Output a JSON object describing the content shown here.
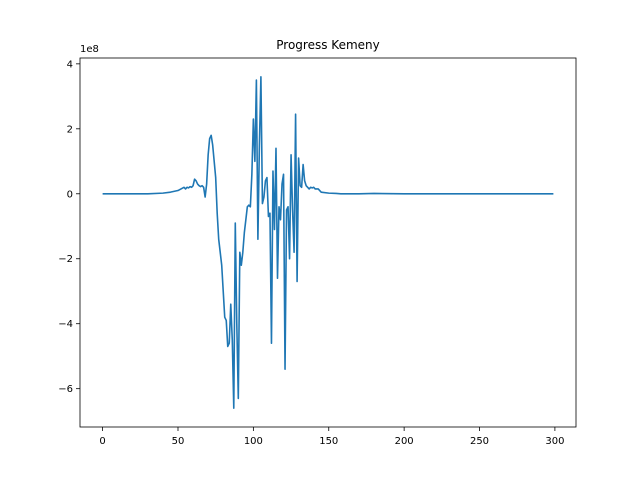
{
  "chart_data": {
    "type": "line",
    "title": "Progress Kemeny",
    "xlabel": "",
    "ylabel": "",
    "y_offset_label": "1e8",
    "xlim": [
      -15,
      314
    ],
    "ylim": [
      -7.18,
      4.18
    ],
    "x_ticks": [
      0,
      50,
      100,
      150,
      200,
      250,
      300
    ],
    "x_tick_labels": [
      "0",
      "50",
      "100",
      "150",
      "200",
      "250",
      "300"
    ],
    "y_ticks": [
      4,
      2,
      0,
      -2,
      -4,
      -6
    ],
    "y_tick_labels": [
      "4",
      "2",
      "0",
      "−2",
      "−4",
      "−6"
    ],
    "grid": false,
    "colors": {
      "line": "#1f77b4",
      "axis": "#000000",
      "background": "#ffffff"
    },
    "series": [
      {
        "x": [
          0,
          10,
          20,
          30,
          40,
          45,
          50,
          52,
          54,
          55,
          56,
          57,
          58,
          59,
          60,
          61,
          62,
          63,
          64,
          65,
          66,
          67,
          68,
          69,
          70,
          71,
          72,
          73,
          74,
          75,
          76,
          77,
          78,
          79,
          80,
          81,
          82,
          83,
          84,
          85,
          86,
          87,
          88,
          89,
          90,
          91,
          92,
          93,
          94,
          95,
          96,
          97,
          98,
          99,
          100,
          101,
          102,
          103,
          104,
          105,
          106,
          107,
          108,
          109,
          110,
          111,
          112,
          113,
          114,
          115,
          116,
          117,
          118,
          119,
          120,
          121,
          122,
          123,
          124,
          125,
          126,
          127,
          128,
          129,
          130,
          131,
          132,
          133,
          134,
          135,
          136,
          137,
          138,
          139,
          140,
          141,
          142,
          143,
          144,
          145,
          150,
          155,
          158,
          160,
          165,
          170,
          180,
          200,
          220,
          240,
          260,
          280,
          299
        ],
        "y": [
          0,
          0,
          0,
          0,
          0.02,
          0.05,
          0.1,
          0.15,
          0.2,
          0.15,
          0.2,
          0.18,
          0.22,
          0.2,
          0.25,
          0.45,
          0.4,
          0.3,
          0.25,
          0.22,
          0.25,
          0.2,
          -0.1,
          0.3,
          1.2,
          1.7,
          1.8,
          1.5,
          1.0,
          0.5,
          -0.6,
          -1.4,
          -1.8,
          -2.2,
          -3.0,
          -3.8,
          -3.9,
          -4.7,
          -4.6,
          -3.4,
          -4.5,
          -6.6,
          -0.9,
          -4.0,
          -6.3,
          -1.8,
          -2.2,
          -1.8,
          -1.2,
          -0.8,
          -0.4,
          -0.35,
          -0.4,
          0.6,
          2.3,
          1.0,
          3.5,
          -1.4,
          1.5,
          3.6,
          -0.3,
          -0.1,
          0.4,
          0.5,
          -0.7,
          -0.6,
          -4.6,
          0.7,
          -1.1,
          1.4,
          -2.6,
          -0.4,
          -0.8,
          0.3,
          0.6,
          -5.4,
          -0.5,
          -0.4,
          -2.0,
          1.2,
          -0.5,
          -1.8,
          2.45,
          -2.7,
          1.1,
          0.25,
          0.2,
          0.9,
          0.4,
          0.25,
          0.2,
          0.15,
          0.2,
          0.18,
          0.2,
          0.15,
          0.15,
          0.15,
          0.1,
          0.05,
          0.02,
          0.01,
          0,
          0,
          0,
          0,
          0.01,
          0,
          0,
          0,
          0,
          0,
          0
        ]
      }
    ]
  }
}
